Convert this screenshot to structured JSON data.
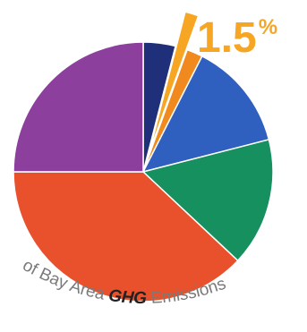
{
  "chart_data": {
    "type": "pie",
    "title": "",
    "slices": [
      {
        "value": 4.0,
        "color": "#1f2f7a"
      },
      {
        "value": 1.5,
        "color": "#f6a623",
        "exploded": true
      },
      {
        "value": 2.0,
        "color": "#f08a1e"
      },
      {
        "value": 13.5,
        "color": "#2f5fbf"
      },
      {
        "value": 16.0,
        "color": "#17905f"
      },
      {
        "value": 38.0,
        "color": "#e8512b"
      },
      {
        "value": 25.0,
        "color": "#8c3f9c"
      }
    ],
    "callout": {
      "value": "1.5",
      "unit": "%",
      "color": "#f6a623"
    },
    "caption": {
      "prefix": "of Bay Area ",
      "emphasis": "GHG",
      "suffix": " Emissions"
    }
  }
}
